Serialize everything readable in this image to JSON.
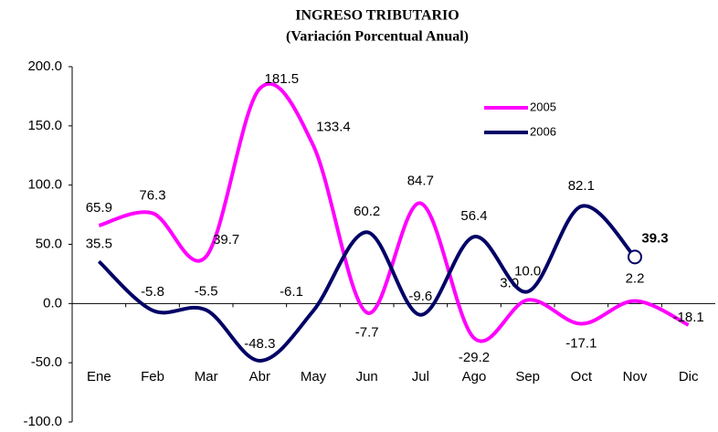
{
  "chart_data": {
    "type": "line",
    "title": "INGRESO TRIBUTARIO",
    "subtitle": "(Variación Porcentual Anual)",
    "categories": [
      "Ene",
      "Feb",
      "Mar",
      "Abr",
      "May",
      "Jun",
      "Jul",
      "Ago",
      "Sep",
      "Oct",
      "Nov",
      "Dic"
    ],
    "series": [
      {
        "name": "2005",
        "color": "#ff00ff",
        "values": [
          65.9,
          76.3,
          39.7,
          181.5,
          133.4,
          -7.7,
          84.7,
          -29.2,
          3.0,
          -17.1,
          2.2,
          -18.1
        ],
        "value_labels": [
          "65.9",
          "76.3",
          "39.7",
          "181.5",
          "133.4",
          "-7.7",
          "84.7",
          "-29.2",
          "3.0",
          "-17.1",
          "2.2",
          "-18.1"
        ]
      },
      {
        "name": "2006",
        "color": "#000066",
        "values": [
          35.5,
          -5.8,
          -5.5,
          -48.3,
          -6.1,
          60.2,
          -9.6,
          56.4,
          10.0,
          82.1,
          39.3,
          null
        ],
        "value_labels": [
          "35.5",
          "-5.8",
          "-5.5",
          "-48.3",
          "-6.1",
          "60.2",
          "-9.6",
          "56.4",
          "10.0",
          "82.1",
          "39.3",
          null
        ]
      }
    ],
    "ylim": [
      -100,
      200
    ],
    "yticks": [
      {
        "value": -100,
        "label": "-100.0"
      },
      {
        "value": -50,
        "label": "-50.0"
      },
      {
        "value": 0,
        "label": "0.0"
      },
      {
        "value": 50,
        "label": "50.0"
      },
      {
        "value": 100,
        "label": "100.0"
      },
      {
        "value": 150,
        "label": "150.0"
      },
      {
        "value": 200,
        "label": "200.0"
      }
    ],
    "grid": false,
    "legend": "top-right"
  }
}
